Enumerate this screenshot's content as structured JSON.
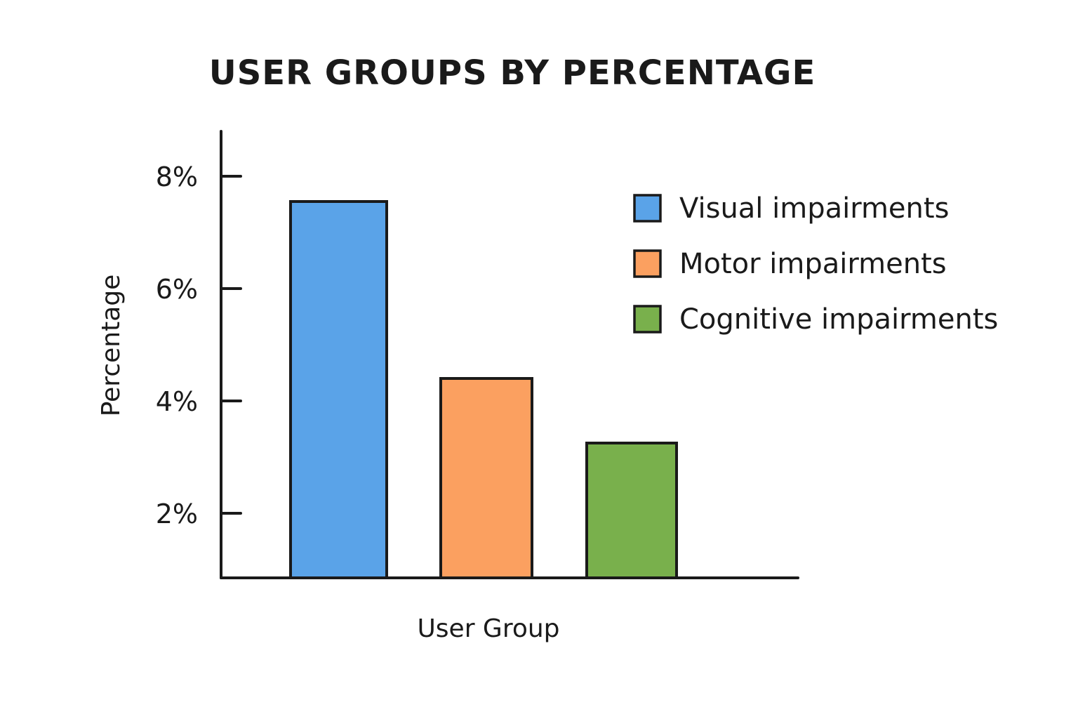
{
  "chart_data": {
    "type": "bar",
    "title": "USER GROUPS BY PERCENTAGE",
    "xlabel": "User Group",
    "ylabel": "Percentage",
    "ylim": [
      0.85,
      8.8
    ],
    "yticks": [
      2,
      4,
      6,
      8
    ],
    "ytick_labels": [
      "2%",
      "4%",
      "6%",
      "8%"
    ],
    "grid": false,
    "legend_position": "top-right",
    "categories": [
      "Visual impairments",
      "Motor impairments",
      "Cognitive impairments"
    ],
    "values": [
      7.55,
      4.4,
      3.25
    ],
    "colors": [
      "#5aa3e8",
      "#fba060",
      "#79b04c"
    ]
  }
}
